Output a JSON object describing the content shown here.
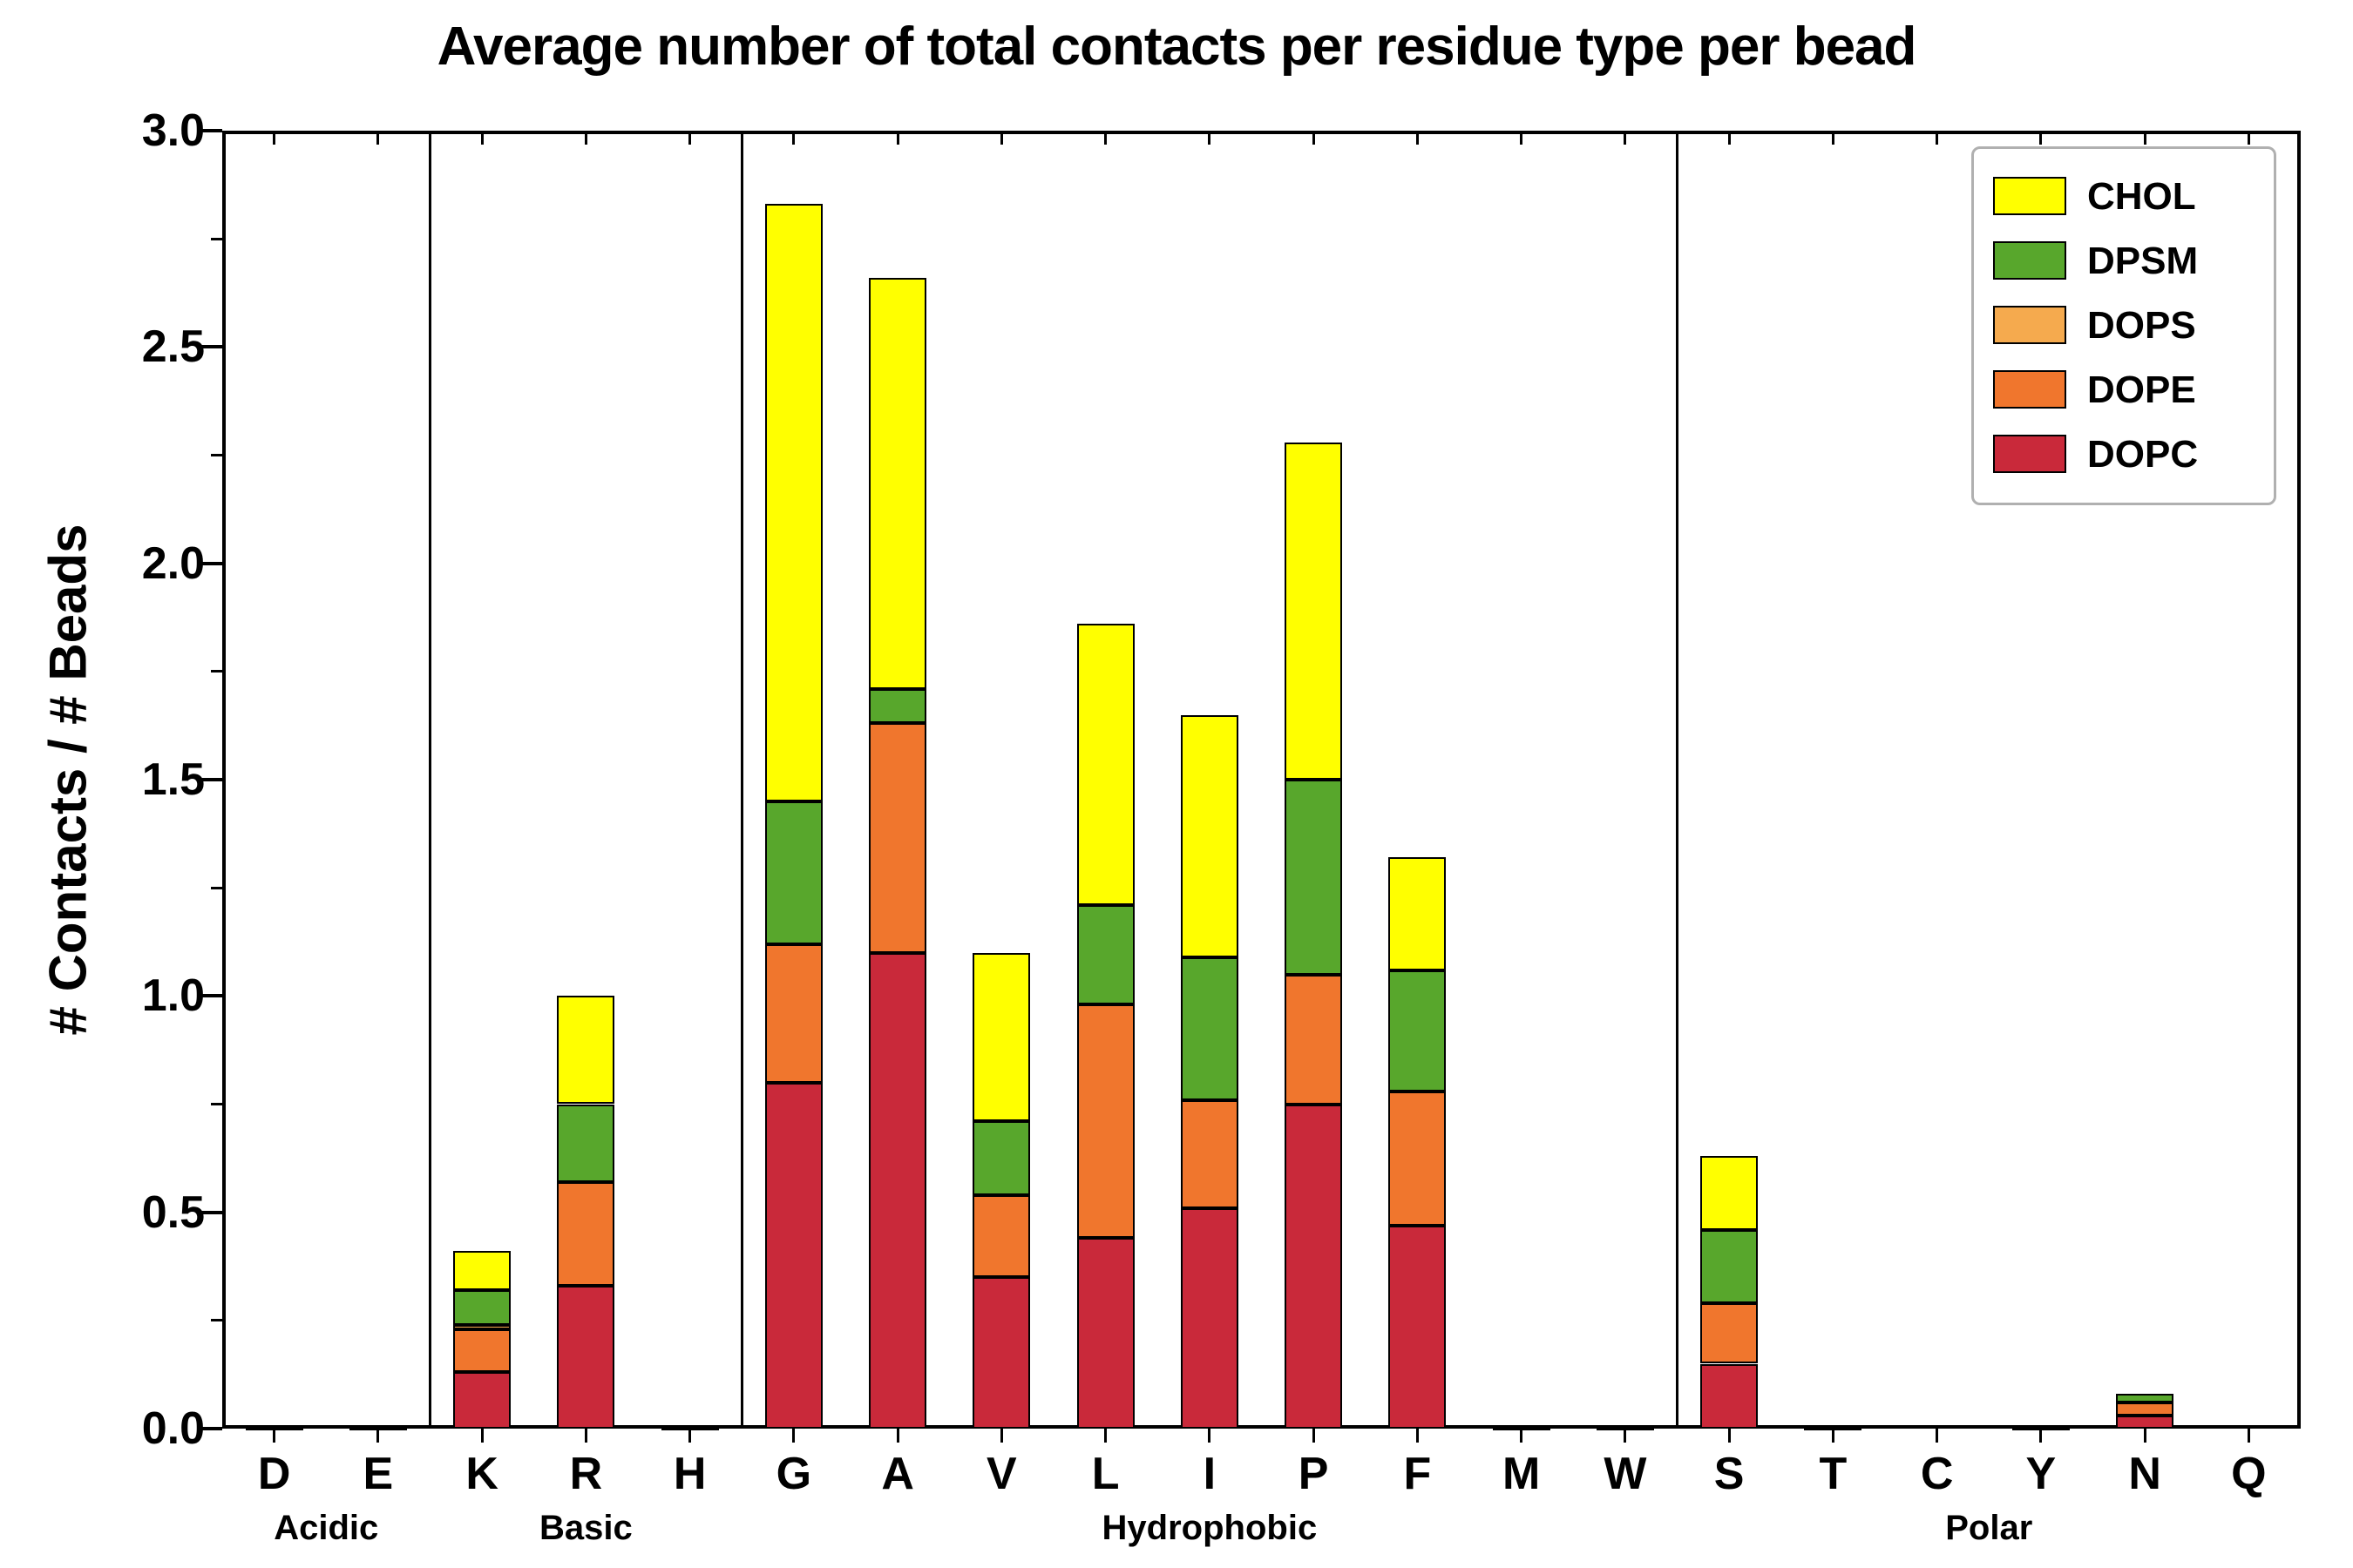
{
  "title": "Average number of total contacts per residue type per bead",
  "chart_data": {
    "type": "bar",
    "stacked": true,
    "title": "Average number of total contacts per residue type per bead",
    "xlabel": "",
    "ylabel": "# Contacts / # Beads",
    "ylim": [
      0,
      3.0
    ],
    "ytick_labels": [
      "0.0",
      "0.5",
      "1.0",
      "1.5",
      "2.0",
      "2.5",
      "3.0"
    ],
    "grid": false,
    "legend_position": "upper right",
    "legend_order": [
      "CHOL",
      "DPSM",
      "DOPS",
      "DOPE",
      "DOPC"
    ],
    "categories": [
      "D",
      "E",
      "K",
      "R",
      "H",
      "G",
      "A",
      "V",
      "L",
      "I",
      "P",
      "F",
      "M",
      "W",
      "S",
      "T",
      "C",
      "Y",
      "N",
      "Q"
    ],
    "groups": [
      {
        "label": "Acidic",
        "residues": [
          "D",
          "E"
        ],
        "start": 0,
        "count": 2
      },
      {
        "label": "Basic",
        "residues": [
          "K",
          "R",
          "H"
        ],
        "start": 2,
        "count": 3
      },
      {
        "label": "Hydrophobic",
        "residues": [
          "G",
          "A",
          "V",
          "L",
          "I",
          "P",
          "F",
          "M",
          "W"
        ],
        "start": 5,
        "count": 9
      },
      {
        "label": "Polar",
        "residues": [
          "S",
          "T",
          "C",
          "Y",
          "N",
          "Q"
        ],
        "start": 14,
        "count": 6
      }
    ],
    "series": [
      {
        "name": "DOPC",
        "color": "#c9293a",
        "values": [
          0.005,
          0.005,
          0.13,
          0.33,
          0.005,
          0.8,
          1.1,
          0.35,
          0.44,
          0.51,
          0.75,
          0.47,
          0.005,
          0.005,
          0.15,
          0.005,
          0.0,
          0.005,
          0.03,
          0.0
        ]
      },
      {
        "name": "DOPE",
        "color": "#f0762d",
        "values": [
          0.0,
          0.0,
          0.1,
          0.24,
          0.0,
          0.32,
          0.53,
          0.19,
          0.54,
          0.25,
          0.3,
          0.31,
          0.0,
          0.0,
          0.14,
          0.0,
          0.0,
          0.0,
          0.03,
          0.0
        ]
      },
      {
        "name": "DOPS",
        "color": "#f5aa4e",
        "values": [
          0.0,
          0.0,
          0.01,
          0.0,
          0.0,
          0.0,
          0.0,
          0.0,
          0.0,
          0.0,
          0.0,
          0.0,
          0.0,
          0.0,
          0.0,
          0.0,
          0.0,
          0.0,
          0.0,
          0.0
        ]
      },
      {
        "name": "DPSM",
        "color": "#58a72c",
        "values": [
          0.0,
          0.0,
          0.08,
          0.18,
          0.0,
          0.33,
          0.08,
          0.17,
          0.23,
          0.33,
          0.45,
          0.28,
          0.0,
          0.0,
          0.17,
          0.0,
          0.0,
          0.0,
          0.02,
          0.0
        ]
      },
      {
        "name": "CHOL",
        "color": "#ffff00",
        "values": [
          0.0,
          0.0,
          0.09,
          0.25,
          0.0,
          1.38,
          0.95,
          0.39,
          0.65,
          0.56,
          0.78,
          0.26,
          0.0,
          0.0,
          0.17,
          0.0,
          0.0,
          0.0,
          0.0,
          0.0
        ]
      }
    ]
  }
}
